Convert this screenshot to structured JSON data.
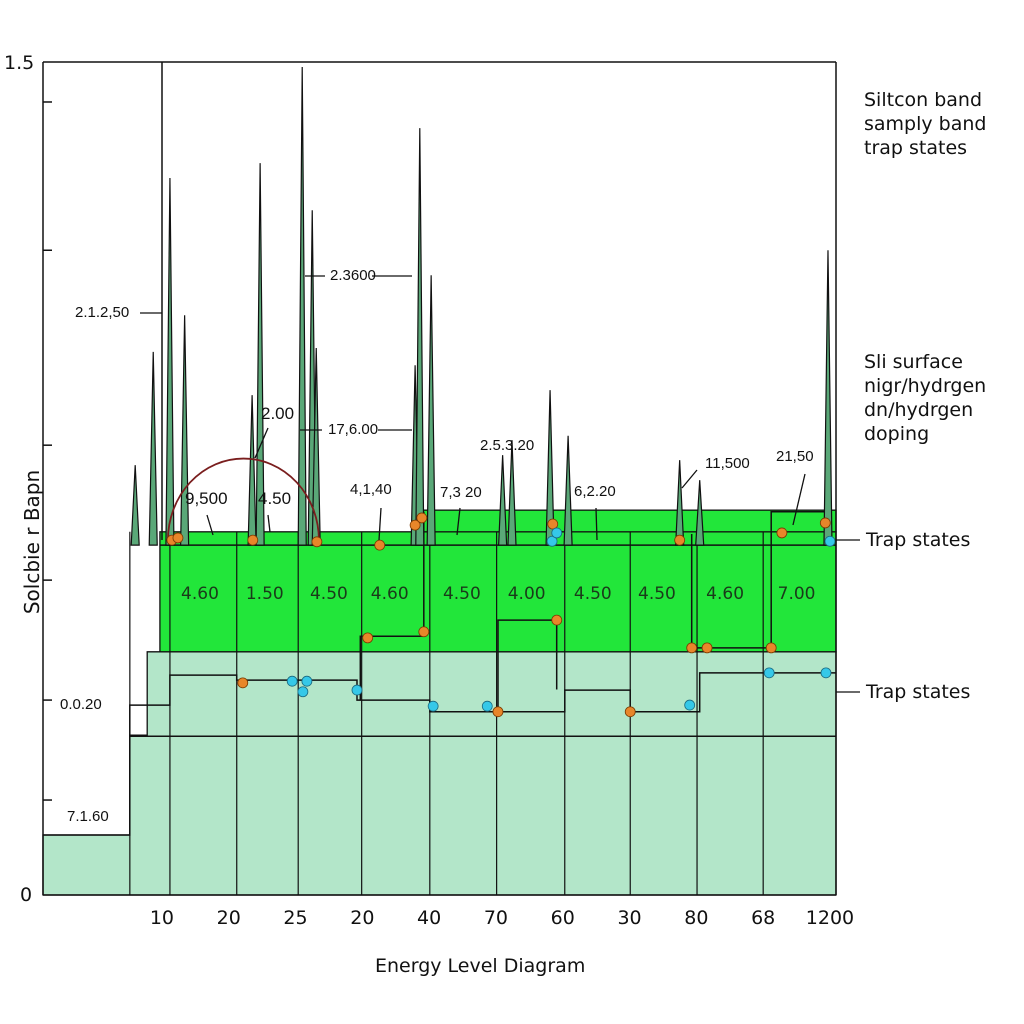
{
  "chart_data": {
    "type": "area",
    "title": "",
    "xlabel": "Energy Level Diagram",
    "ylabel": "Solcbie r Bapn",
    "xlim": [
      -1.78,
      10.09
    ],
    "ylim": [
      0,
      1.5
    ],
    "x_tick_labels": [
      "10",
      "20",
      "25",
      "20",
      "40",
      "70",
      "60",
      "30",
      "80",
      "68",
      "1200"
    ],
    "y_tick_labels": [
      "1.5",
      "0"
    ],
    "y_minor_ticks": [
      1.428,
      1.161,
      0.81,
      0.567,
      0.351,
      0.171
    ],
    "colors": {
      "substrate": "#b3e6c9",
      "band": "#22e63a",
      "spike": "#5aa878",
      "orange": "#e8862a",
      "cyan": "#35c8e8",
      "arc": "#7a1e1e"
    },
    "substrate": [
      [
        -1.78,
        0
      ],
      [
        -1.78,
        0.108
      ],
      [
        -0.48,
        0.108
      ],
      [
        -0.48,
        0.288
      ],
      [
        -0.22,
        0.288
      ],
      [
        -0.22,
        0.438
      ],
      [
        10.09,
        0.438
      ],
      [
        10.09,
        0
      ]
    ],
    "band": {
      "x0": -0.03,
      "x1": 10.09,
      "y0": 0.438,
      "y1": 0.654,
      "upper_x0": 3.79,
      "upper_y1": 0.693
    },
    "band_values": [
      {
        "x": 0.57,
        "label": "4.60"
      },
      {
        "x": 1.54,
        "label": "1.50"
      },
      {
        "x": 2.5,
        "label": "4.50"
      },
      {
        "x": 3.41,
        "label": "4.60"
      },
      {
        "x": 4.49,
        "label": "4.50"
      },
      {
        "x": 5.46,
        "label": "4.00"
      },
      {
        "x": 6.45,
        "label": "4.50"
      },
      {
        "x": 7.41,
        "label": "4.50"
      },
      {
        "x": 8.43,
        "label": "4.60"
      },
      {
        "x": 9.5,
        "label": "7.00"
      }
    ],
    "column_lines": [
      -0.48,
      0.12,
      1.12,
      2.04,
      2.99,
      4.01,
      5.01,
      6.03,
      7.01,
      8.01,
      9.0
    ],
    "step_lines": [
      [
        [
          -1.78,
          0.108
        ],
        [
          -0.48,
          0.108
        ],
        [
          -0.48,
          0.342
        ],
        [
          0.12,
          0.342
        ],
        [
          0.12,
          0.396
        ],
        [
          1.12,
          0.396
        ],
        [
          1.12,
          0.387
        ],
        [
          2.92,
          0.387
        ],
        [
          2.92,
          0.351
        ],
        [
          4.01,
          0.351
        ],
        [
          4.01,
          0.33
        ],
        [
          6.03,
          0.33
        ],
        [
          6.03,
          0.369
        ],
        [
          7.01,
          0.369
        ],
        [
          7.01,
          0.33
        ],
        [
          8.05,
          0.33
        ],
        [
          8.05,
          0.4
        ],
        [
          10.09,
          0.4
        ]
      ],
      [
        [
          2.97,
          0.35
        ],
        [
          2.97,
          0.466
        ],
        [
          3.92,
          0.466
        ],
        [
          3.92,
          0.69
        ]
      ],
      [
        [
          5.03,
          0.33
        ],
        [
          5.03,
          0.495
        ],
        [
          5.91,
          0.495
        ],
        [
          5.91,
          0.37
        ]
      ],
      [
        [
          7.93,
          0.65
        ],
        [
          7.93,
          0.445
        ],
        [
          9.12,
          0.445
        ],
        [
          9.12,
          0.69
        ],
        [
          9.93,
          0.69
        ]
      ],
      [
        [
          -0.48,
          0.286
        ],
        [
          10.09,
          0.286
        ]
      ],
      [
        [
          -0.03,
          0.63
        ],
        [
          10.09,
          0.63
        ]
      ]
    ],
    "spikes": [
      [
        -0.4,
        0.774
      ],
      [
        -0.13,
        0.978
      ],
      [
        0.12,
        1.291
      ],
      [
        0.34,
        1.044
      ],
      [
        1.35,
        0.9
      ],
      [
        1.47,
        1.318
      ],
      [
        2.1,
        1.491
      ],
      [
        2.25,
        1.233
      ],
      [
        2.31,
        0.985
      ],
      [
        3.79,
        0.954
      ],
      [
        3.86,
        1.381
      ],
      [
        4.03,
        1.116
      ],
      [
        5.1,
        0.792
      ],
      [
        5.24,
        0.819
      ],
      [
        5.81,
        0.909
      ],
      [
        6.08,
        0.827
      ],
      [
        7.75,
        0.783
      ],
      [
        8.05,
        0.747
      ],
      [
        9.97,
        1.161
      ]
    ],
    "spike_base": 0.63,
    "arc": {
      "x0": 0.09,
      "x1": 2.35,
      "y_base": 0.639,
      "y_peak": 0.786
    },
    "orange_points": [
      [
        0.15,
        0.639
      ],
      [
        0.24,
        0.643
      ],
      [
        1.36,
        0.639
      ],
      [
        1.21,
        0.382
      ],
      [
        2.32,
        0.636
      ],
      [
        3.26,
        0.63
      ],
      [
        3.79,
        0.666
      ],
      [
        3.89,
        0.679
      ],
      [
        3.08,
        0.463
      ],
      [
        3.92,
        0.474
      ],
      [
        5.85,
        0.668
      ],
      [
        5.91,
        0.495
      ],
      [
        5.03,
        0.33
      ],
      [
        7.01,
        0.33
      ],
      [
        7.75,
        0.639
      ],
      [
        7.93,
        0.445
      ],
      [
        8.16,
        0.445
      ],
      [
        9.12,
        0.445
      ],
      [
        9.28,
        0.652
      ],
      [
        9.93,
        0.67
      ]
    ],
    "cyan_points": [
      [
        1.95,
        0.385
      ],
      [
        2.11,
        0.366
      ],
      [
        2.17,
        0.385
      ],
      [
        2.92,
        0.369
      ],
      [
        4.06,
        0.34
      ],
      [
        4.87,
        0.34
      ],
      [
        5.84,
        0.637
      ],
      [
        5.91,
        0.652
      ],
      [
        7.9,
        0.342
      ],
      [
        9.09,
        0.4
      ],
      [
        9.94,
        0.4
      ],
      [
        10.0,
        0.637
      ]
    ],
    "annotations": [
      "2.1.2,50",
      "2.3600",
      "17,6.00",
      "2.00",
      "9,500",
      "4.50",
      "4,1,40",
      "7,3 20",
      "2.5.3.20",
      "6,2.20",
      "11,500",
      "21,50",
      "0.0.20",
      "7.1.60"
    ],
    "right_labels": [
      "Trap states",
      "Trap states"
    ],
    "legend_top": [
      "Siltcon band",
      "samply band",
      "trap states"
    ],
    "legend_bottom": [
      "Sli surface",
      "nigr/hydrgen",
      "dn/hydrgen",
      "doping"
    ]
  }
}
